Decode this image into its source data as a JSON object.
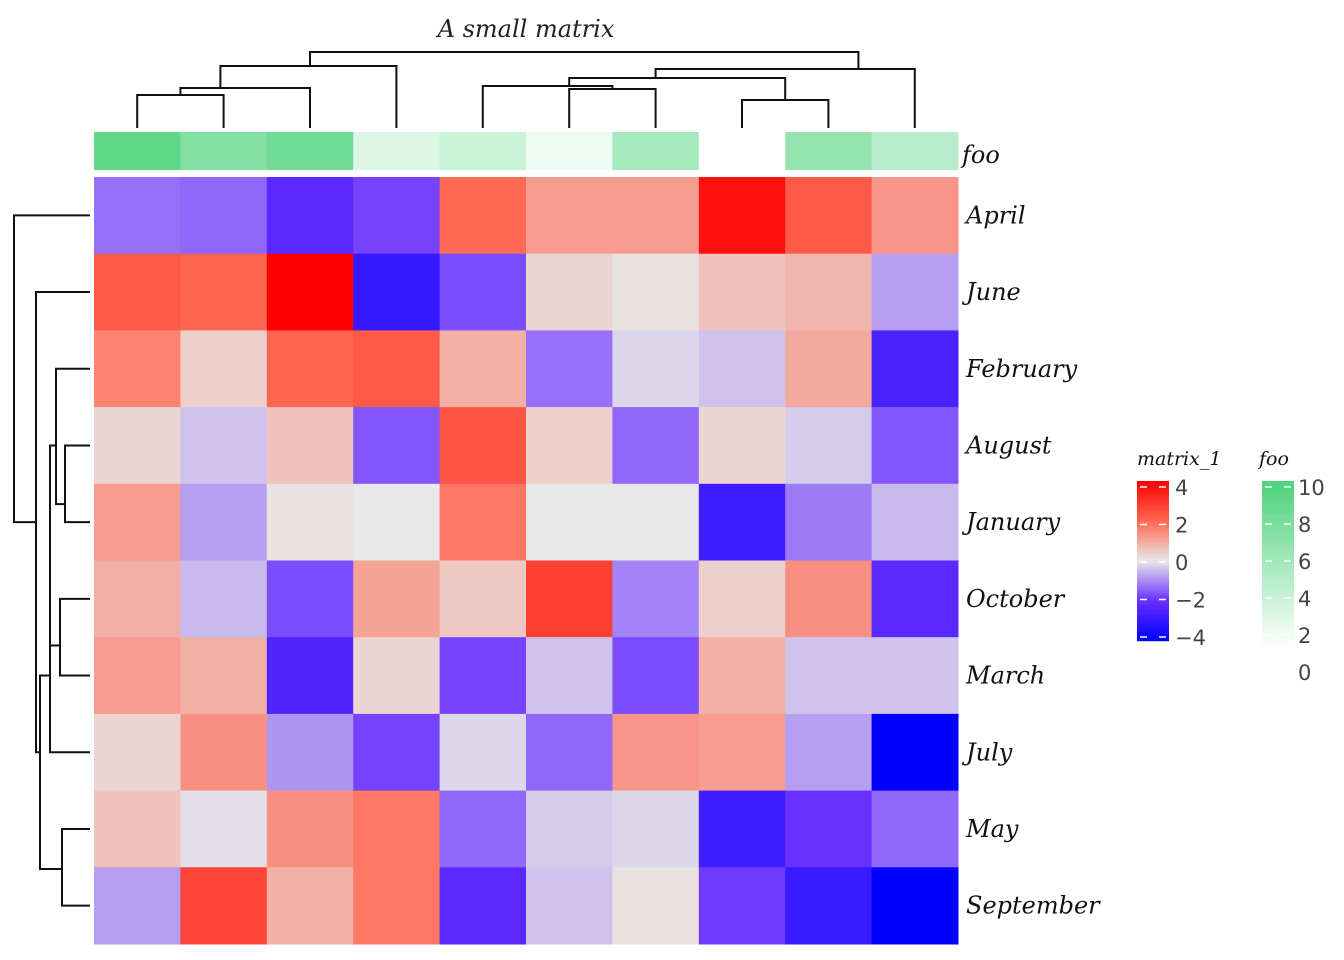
{
  "chart_data": {
    "type": "heatmap",
    "title": "A small matrix",
    "rows": [
      "April",
      "June",
      "February",
      "August",
      "January",
      "October",
      "March",
      "July",
      "May",
      "September"
    ],
    "n_cols": 10,
    "values": [
      [
        -1.3,
        -1.4,
        -2.3,
        -1.8,
        2.0,
        1.2,
        1.2,
        3.7,
        2.3,
        1.3
      ],
      [
        2.3,
        2.1,
        4.0,
        -3.0,
        -1.7,
        0.3,
        0.1,
        0.6,
        0.8,
        -0.8
      ],
      [
        1.6,
        0.4,
        2.1,
        2.3,
        0.9,
        -1.3,
        -0.2,
        -0.4,
        1.0,
        -2.6
      ],
      [
        0.3,
        -0.4,
        0.6,
        -1.6,
        2.4,
        0.4,
        -1.4,
        0.3,
        -0.3,
        -1.6
      ],
      [
        1.2,
        -0.8,
        0.1,
        0.0,
        1.8,
        0.0,
        0.0,
        -2.8,
        -1.2,
        -0.5
      ],
      [
        0.9,
        -0.5,
        -1.7,
        1.1,
        0.5,
        2.8,
        -1.1,
        0.4,
        1.4,
        -2.3
      ],
      [
        1.2,
        0.9,
        -2.5,
        0.3,
        -1.8,
        -0.4,
        -1.7,
        0.9,
        -0.4,
        -0.4
      ],
      [
        0.3,
        1.4,
        -0.9,
        -1.8,
        -0.2,
        -1.4,
        1.3,
        1.2,
        -0.8,
        -4.0
      ],
      [
        0.6,
        -0.1,
        1.4,
        1.8,
        -1.4,
        -0.3,
        -0.2,
        -2.8,
        -2.0,
        -1.4
      ],
      [
        -0.8,
        2.7,
        0.9,
        1.8,
        -2.3,
        -0.4,
        0.1,
        -1.9,
        -2.9,
        -4.0
      ]
    ],
    "annotation": {
      "name": "foo",
      "values": [
        9,
        7,
        8,
        2,
        3,
        1,
        5,
        0,
        6,
        4
      ]
    },
    "legends": [
      {
        "title": "matrix_1",
        "ticks": [
          "4",
          "2",
          "0",
          "−2",
          "−4"
        ],
        "range": [
          -4,
          4
        ],
        "colors": [
          "#0000ff",
          "#6a30ff",
          "#e8e8e8",
          "#ff6a55",
          "#ff0000"
        ]
      },
      {
        "title": "foo",
        "ticks": [
          "10",
          "8",
          "6",
          "4",
          "2",
          "0"
        ],
        "range": [
          0,
          10
        ],
        "colors": [
          "#ffffff",
          "#4cd27a"
        ]
      }
    ],
    "row_dendrogram": true,
    "column_dendrogram": true
  }
}
